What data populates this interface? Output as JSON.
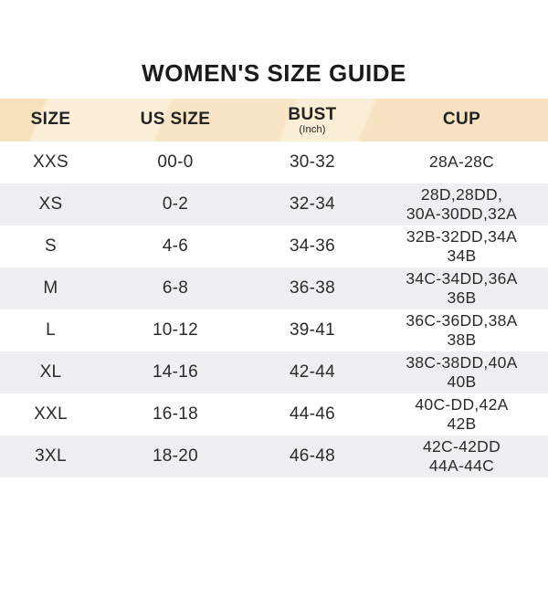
{
  "page": {
    "title": "WOMEN'S SIZE GUIDE"
  },
  "chart_data": {
    "type": "table",
    "title": "WOMEN'S SIZE GUIDE",
    "columns": [
      {
        "label": "SIZE",
        "sub": ""
      },
      {
        "label": "US SIZE",
        "sub": ""
      },
      {
        "label": "BUST",
        "sub": "(Inch)"
      },
      {
        "label": "CUP",
        "sub": ""
      }
    ],
    "rows": [
      {
        "size": "XXS",
        "us_size": "00-0",
        "bust": "30-32",
        "cup": "28A-28C"
      },
      {
        "size": "XS",
        "us_size": "0-2",
        "bust": "32-34",
        "cup": "28D,28DD,\n30A-30DD,32A"
      },
      {
        "size": "S",
        "us_size": "4-6",
        "bust": "34-36",
        "cup": "32B-32DD,34A\n34B"
      },
      {
        "size": "M",
        "us_size": "6-8",
        "bust": "36-38",
        "cup": "34C-34DD,36A\n36B"
      },
      {
        "size": "L",
        "us_size": "10-12",
        "bust": "39-41",
        "cup": "36C-36DD,38A\n38B"
      },
      {
        "size": "XL",
        "us_size": "14-16",
        "bust": "42-44",
        "cup": "38C-38DD,40A\n40B"
      },
      {
        "size": "XXL",
        "us_size": "16-18",
        "bust": "44-46",
        "cup": "40C-DD,42A\n42B"
      },
      {
        "size": "3XL",
        "us_size": "18-20",
        "bust": "46-48",
        "cup": "42C-42DD\n44A-44C"
      }
    ]
  },
  "colors": {
    "header_band_dark": "#f6e1bd",
    "header_band_light": "#fcefd9",
    "row_alt": "#efeff1",
    "text": "#272727",
    "title_text": "#1b1b1b"
  }
}
